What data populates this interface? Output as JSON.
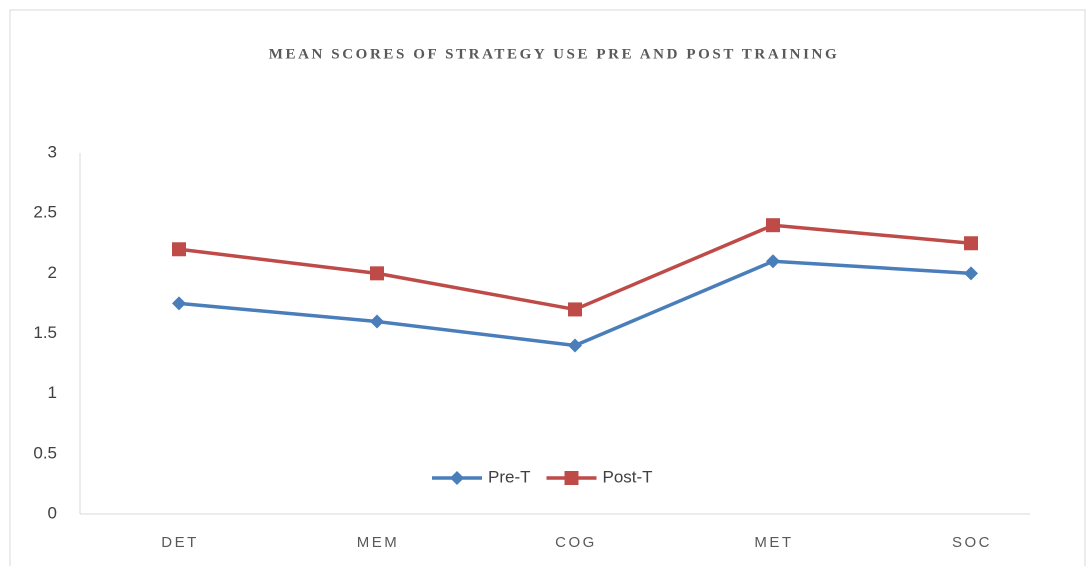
{
  "chart_data": {
    "type": "line",
    "title": "MEAN SCORES OF STRATEGY USE PRE AND POST TRAINING",
    "categories": [
      "DET",
      "MEM",
      "COG",
      "MET",
      "SOC"
    ],
    "series": [
      {
        "name": "Pre-T",
        "color": "#4a7ebb",
        "marker": "diamond",
        "values": [
          1.75,
          1.6,
          1.4,
          2.1,
          2.0
        ]
      },
      {
        "name": "Post-T",
        "color": "#be4b48",
        "marker": "square",
        "values": [
          2.2,
          2.0,
          1.7,
          2.4,
          2.25
        ]
      }
    ],
    "ylim": [
      0,
      3
    ],
    "yticks": [
      0,
      0.5,
      1,
      1.5,
      2,
      2.5,
      3
    ],
    "grid": false,
    "legend": "bottom"
  }
}
